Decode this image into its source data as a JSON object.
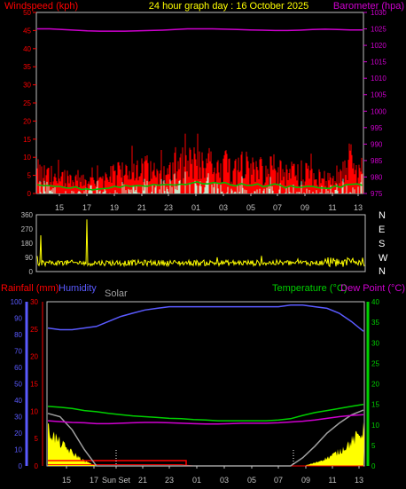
{
  "header": {
    "title": "24 hour graph day : 16 October 2025",
    "left_label": "Windspeed (kph)",
    "right_label": "Barometer (hpa)"
  },
  "colors": {
    "wind": "#ff0000",
    "gust_light": "#c8e6c8",
    "wind_avg": "#00c000",
    "baro": "#d000d0",
    "direction": "#ffff00",
    "humidity": "#5a5aff",
    "temperature": "#00d000",
    "dewpoint": "#d000d0",
    "rain": "#ff0000",
    "solar": "#a0a0a0",
    "solar_fill": "#ffff00",
    "axis_left": "#ff0000",
    "axis_right": "#d000d0",
    "axis_grey": "#c0c0c0"
  },
  "chart_data": [
    {
      "type": "bar",
      "name": "wind-barometer",
      "x_ticks": [
        "15",
        "17",
        "19",
        "21",
        "23",
        "01",
        "03",
        "05",
        "07",
        "09",
        "11",
        "13"
      ],
      "y_left": {
        "label": "Windspeed (kph)",
        "range": [
          0,
          50
        ],
        "ticks": [
          "0",
          "5",
          "10",
          "15",
          "20",
          "25",
          "30",
          "35",
          "40",
          "45",
          "50"
        ]
      },
      "y_right": {
        "label": "Barometer (hpa)",
        "range": [
          975,
          1030
        ],
        "ticks": [
          "975",
          "980",
          "985",
          "990",
          "995",
          "1000",
          "1005",
          "1010",
          "1015",
          "1020",
          "1025",
          "1030"
        ]
      },
      "wind_profile": [
        6,
        5,
        5,
        4,
        3,
        3,
        5,
        6,
        6,
        7,
        7,
        8,
        8,
        9,
        9,
        8,
        7,
        8,
        6,
        7,
        5,
        6,
        5,
        4,
        5,
        7,
        7
      ],
      "barometer": [
        1025,
        1025,
        1024.8,
        1024.6,
        1024.4,
        1024.3,
        1024.3,
        1024.3,
        1024.4,
        1024.5,
        1024.6,
        1024.8,
        1025,
        1025,
        1025,
        1024.9,
        1024.8,
        1024.7,
        1024.6,
        1024.5,
        1024.5,
        1024.6,
        1024.8,
        1024.9,
        1024.8,
        1024.7,
        1024.7
      ]
    },
    {
      "type": "scatter",
      "name": "wind-direction",
      "x_ticks": [
        "15",
        "17",
        "19",
        "21",
        "23",
        "01",
        "03",
        "05",
        "07",
        "09",
        "11",
        "13"
      ],
      "y_left": {
        "range": [
          0,
          360
        ],
        "ticks": [
          "0",
          "90",
          "180",
          "270",
          "360"
        ]
      },
      "y_right": {
        "ticks": [
          "N",
          "E",
          "S",
          "W",
          "N"
        ]
      },
      "direction_baseline": 55
    },
    {
      "type": "line",
      "name": "temperature-humidity-rain",
      "labels": {
        "rainfall": "Rainfall (mm)",
        "humidity": "Humidity",
        "solar": "Solar",
        "temperature": "Temperature (°C)",
        "dewpoint": "Dew Point (°C)"
      },
      "x_ticks": [
        "15",
        "17",
        "Sun Set",
        "21",
        "23",
        "01",
        "03",
        "05",
        "07",
        "09",
        "11",
        "13"
      ],
      "humidity_axis": {
        "range": [
          0,
          100
        ],
        "ticks": [
          "0",
          "10",
          "20",
          "30",
          "40",
          "50",
          "60",
          "70",
          "80",
          "90",
          "100"
        ]
      },
      "rain_axis": {
        "range": [
          0,
          30
        ],
        "ticks": [
          "0",
          "5",
          "10",
          "15",
          "20",
          "25",
          "30"
        ]
      },
      "temp_axis": {
        "range": [
          0,
          40
        ],
        "ticks": [
          "0",
          "5",
          "10",
          "15",
          "20",
          "25",
          "30",
          "35",
          "40"
        ]
      },
      "humidity": [
        84,
        83,
        83,
        84,
        85,
        88,
        91,
        93,
        95,
        96,
        97,
        97,
        97,
        97,
        97,
        97,
        97,
        97,
        97,
        97,
        98,
        98,
        97,
        96,
        93,
        88,
        82
      ],
      "temperature": [
        14.5,
        14.3,
        14,
        13.5,
        13.2,
        12.8,
        12.5,
        12.2,
        12,
        11.8,
        11.6,
        11.5,
        11.3,
        11.2,
        11,
        11,
        11,
        11,
        11,
        11.2,
        11.5,
        12.3,
        13,
        13.5,
        14,
        14.5,
        15
      ],
      "dewpoint": [
        11,
        10.8,
        10.6,
        10.5,
        10.3,
        10.3,
        10.4,
        10.5,
        10.6,
        10.6,
        10.5,
        10.4,
        10.3,
        10.2,
        10.2,
        10.3,
        10.4,
        10.4,
        10.4,
        10.5,
        10.7,
        10.9,
        11.2,
        11.6,
        12,
        12.3,
        12.5
      ],
      "solar_line": [
        32,
        30,
        22,
        10,
        0,
        0,
        0,
        0,
        0,
        0,
        0,
        0,
        0,
        0,
        0,
        0,
        0,
        0,
        0,
        0,
        0,
        5,
        12,
        20,
        26,
        31,
        34
      ],
      "solar_fill": [
        22,
        14,
        8,
        3,
        0,
        0,
        0,
        0,
        0,
        0,
        0,
        0,
        0,
        0,
        0,
        0,
        0,
        0,
        0,
        0,
        0,
        0,
        2,
        5,
        9,
        15,
        22
      ],
      "rain": [
        1,
        1,
        1,
        1,
        1,
        1,
        1,
        1,
        1,
        1,
        1,
        1,
        0,
        0,
        0,
        0,
        0,
        0,
        0,
        0,
        0,
        0,
        0,
        0,
        0,
        0,
        0
      ]
    }
  ]
}
